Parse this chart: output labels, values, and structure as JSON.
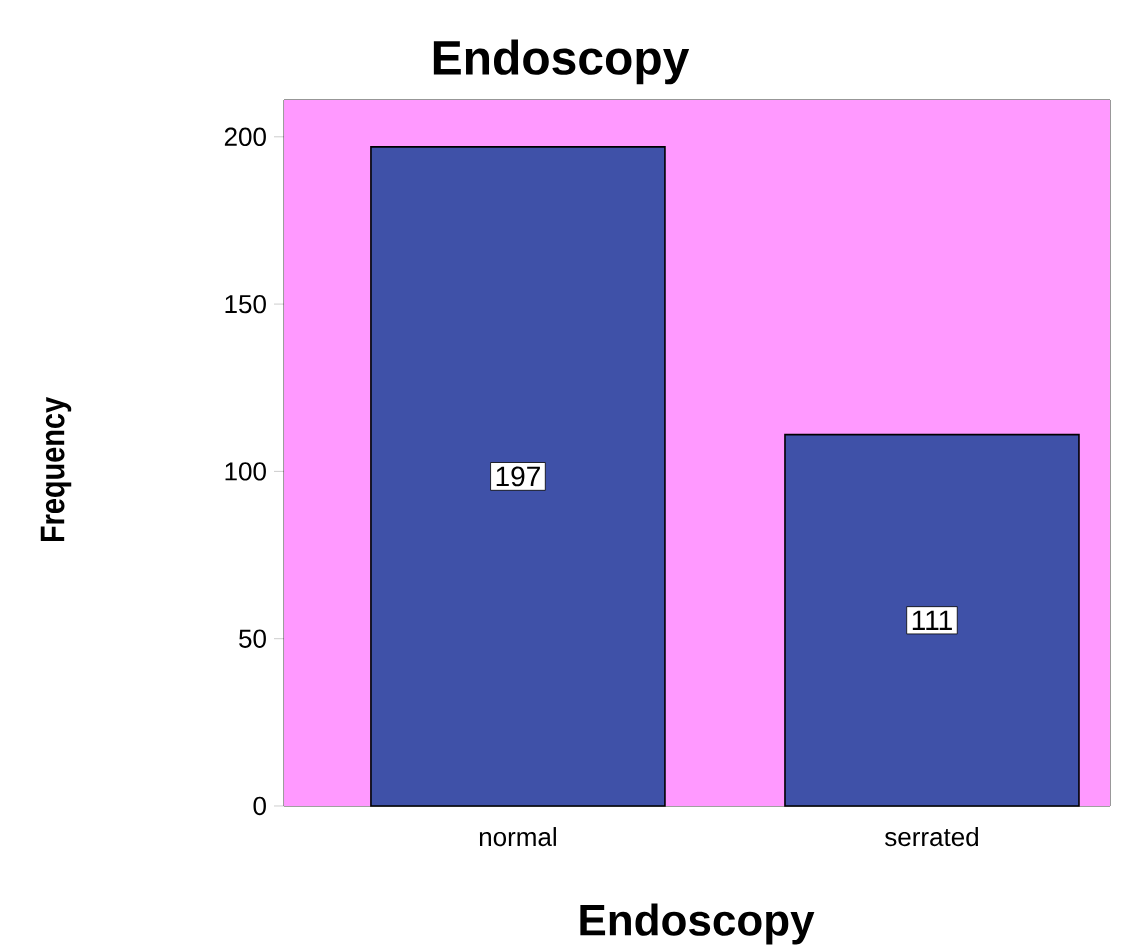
{
  "chart_data": {
    "type": "bar",
    "title": "Endoscopy",
    "xlabel": "Endoscopy",
    "ylabel": "Frequency",
    "categories": [
      "normal",
      "serrated"
    ],
    "values": [
      197,
      111
    ],
    "color": "#3f51a8",
    "ylim": [
      0,
      211
    ],
    "yticks": [
      0,
      50,
      100,
      150,
      200
    ],
    "bands": [
      {
        "axis": "y",
        "from": 0,
        "to": 211,
        "color": "#ff99ff"
      }
    ],
    "data_labels": true,
    "grid": false
  }
}
